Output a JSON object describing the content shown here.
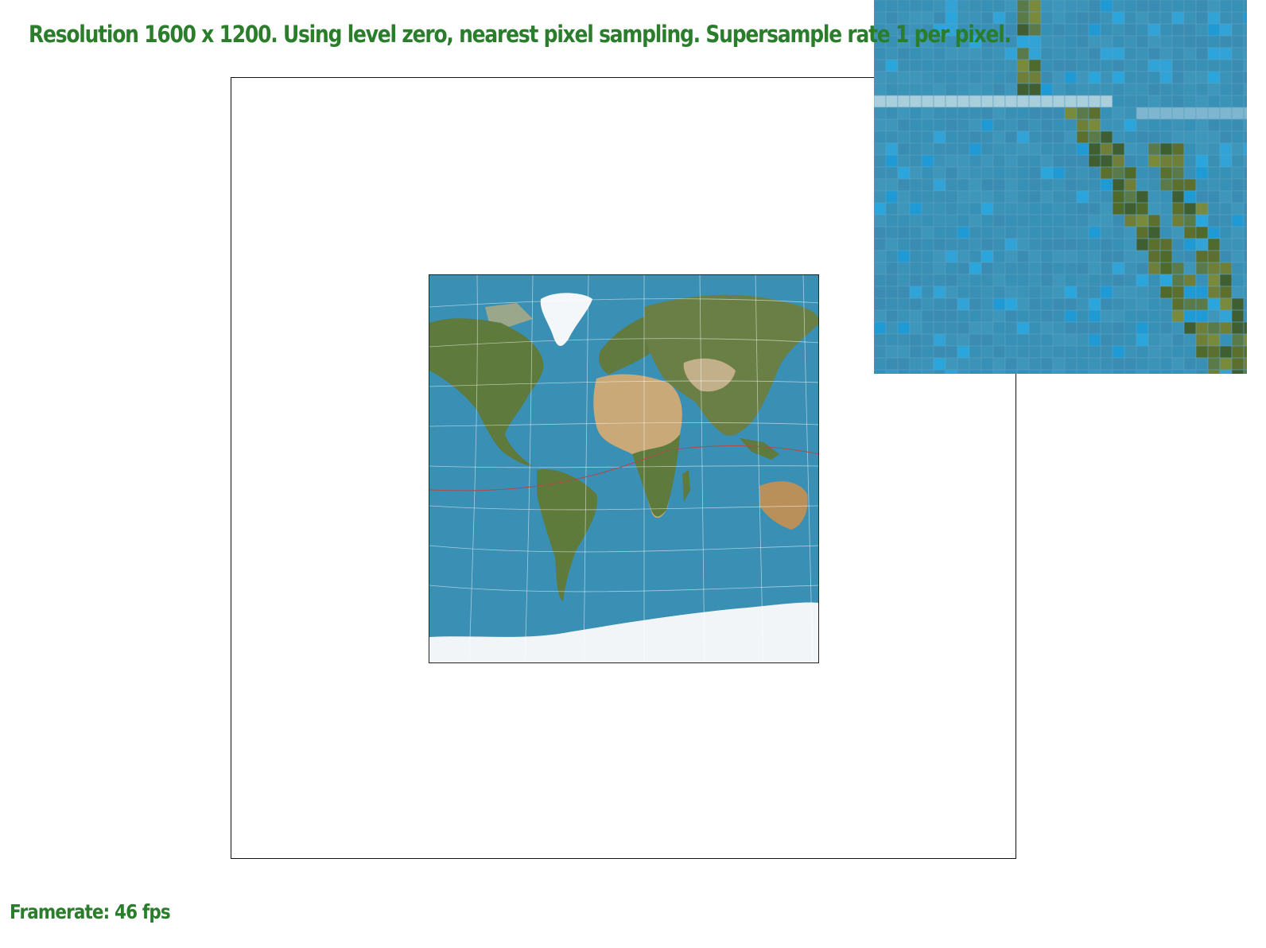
{
  "header": {
    "status_line": "Resolution 1600 x 1200. Using level zero, nearest pixel sampling. Supersample rate 1 per pixel."
  },
  "footer": {
    "framerate_line": "Framerate: 46 fps"
  },
  "colors": {
    "status_text": "#2a7d2a",
    "ocean": "#3a8fb5",
    "land_green": "#5e7a3c",
    "land_desert": "#c9a978",
    "ice": "#f4f7f9",
    "grid_line": "#ffffff",
    "tropic_line": "#b04a4a"
  },
  "scene": {
    "content": "world-map-texture",
    "zoom_inset": "pixel-zoom-icon"
  }
}
